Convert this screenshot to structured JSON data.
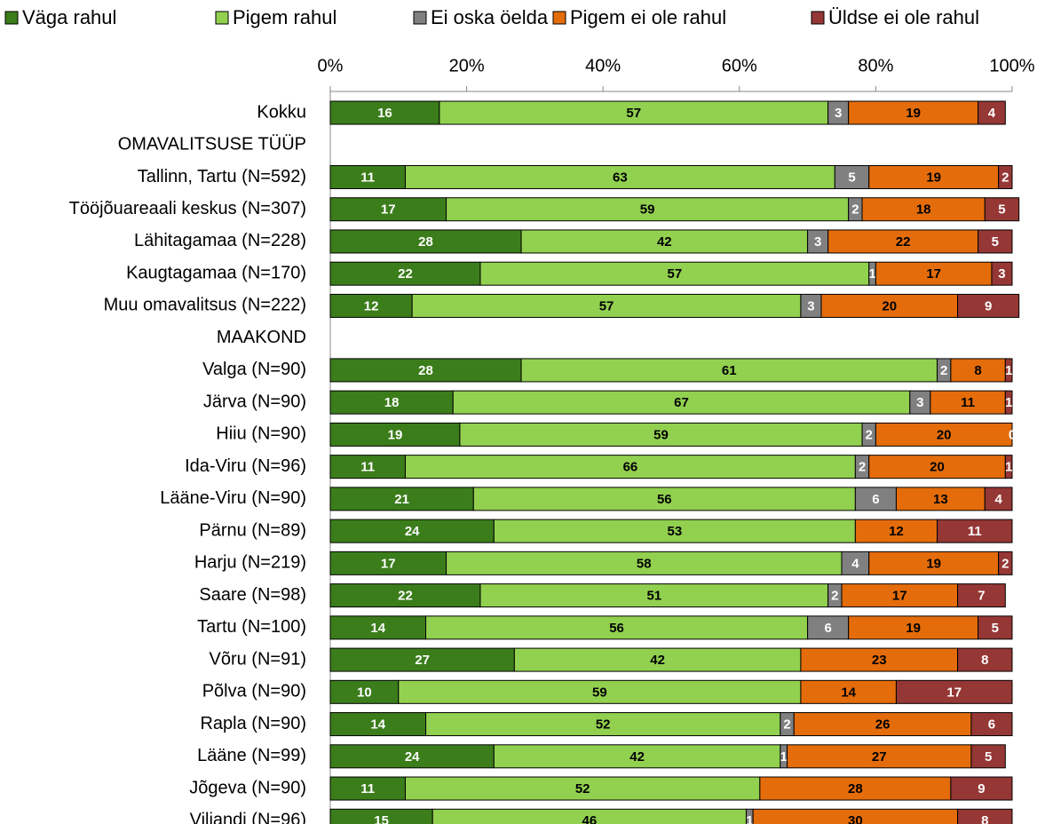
{
  "chart_data": {
    "type": "stacked_bar_horizontal",
    "categories": [
      "Kokku",
      "OMAVALITSUSE TÜÜP",
      "Tallinn, Tartu (N=592)",
      "Tööjõuareaali keskus (N=307)",
      "Lähitagamaa (N=228)",
      "Kaugtagamaa (N=170)",
      "Muu omavalitsus (N=222)",
      "MAAKOND",
      "Valga (N=90)",
      "Järva (N=90)",
      "Hiiu (N=90)",
      "Ida-Viru (N=96)",
      "Lääne-Viru (N=90)",
      "Pärnu (N=89)",
      "Harju (N=219)",
      "Saare (N=98)",
      "Tartu (N=100)",
      "Võru (N=91)",
      "Põlva (N=90)",
      "Rapla (N=90)",
      "Lääne (N=99)",
      "Jõgeva (N=90)",
      "Viljandi (N=96)"
    ],
    "series": [
      {
        "name": "Väga rahul",
        "color": "#3b7d1b",
        "values": [
          16,
          null,
          11,
          17,
          28,
          22,
          12,
          null,
          28,
          18,
          19,
          11,
          21,
          24,
          17,
          22,
          14,
          27,
          10,
          14,
          24,
          11,
          15
        ]
      },
      {
        "name": "Pigem rahul",
        "color": "#92d050",
        "values": [
          57,
          null,
          63,
          59,
          42,
          57,
          57,
          null,
          61,
          67,
          59,
          66,
          56,
          53,
          58,
          51,
          56,
          42,
          59,
          52,
          42,
          52,
          46
        ]
      },
      {
        "name": "Ei oska öelda",
        "color": "#808080",
        "values": [
          3,
          null,
          5,
          2,
          3,
          1,
          3,
          null,
          2,
          3,
          2,
          2,
          6,
          null,
          4,
          2,
          6,
          null,
          null,
          2,
          1,
          null,
          1
        ]
      },
      {
        "name": "Pigem ei ole rahul",
        "color": "#e46c0a",
        "values": [
          19,
          null,
          19,
          18,
          22,
          17,
          20,
          null,
          8,
          11,
          20,
          20,
          13,
          12,
          19,
          17,
          19,
          23,
          14,
          26,
          27,
          28,
          30
        ]
      },
      {
        "name": "Üldse ei ole rahul",
        "color": "#953735",
        "values": [
          4,
          null,
          2,
          5,
          5,
          3,
          9,
          null,
          1,
          1,
          0,
          1,
          4,
          11,
          2,
          7,
          5,
          8,
          17,
          6,
          5,
          9,
          8
        ]
      }
    ],
    "xlim": [
      0,
      100
    ],
    "xticks": [
      {
        "value": 0,
        "label": "0%"
      },
      {
        "value": 20,
        "label": "20%"
      },
      {
        "value": 40,
        "label": "40%"
      },
      {
        "value": 60,
        "label": "60%"
      },
      {
        "value": 80,
        "label": "80%"
      },
      {
        "value": 100,
        "label": "100%"
      }
    ],
    "legend": "top"
  }
}
